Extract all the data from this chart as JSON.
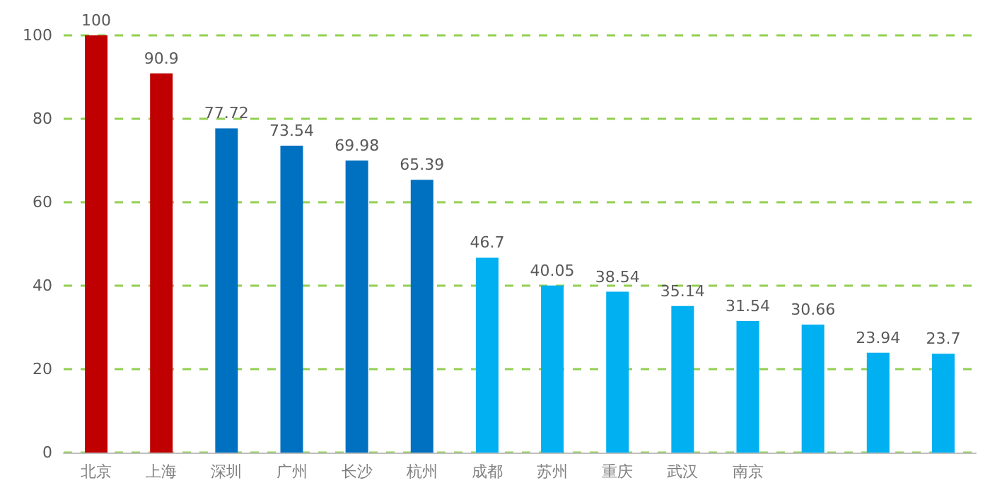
{
  "chart_data": {
    "type": "bar",
    "categories": [
      "北京",
      "上海",
      "深圳",
      "广州",
      "长沙",
      "杭州",
      "成都",
      "苏州",
      "重庆",
      "武汉",
      "南京",
      null,
      null,
      null
    ],
    "values": [
      100,
      90.9,
      77.72,
      73.54,
      69.98,
      65.39,
      46.7,
      40.05,
      38.54,
      35.14,
      31.54,
      30.66,
      23.94,
      23.7
    ],
    "colors": [
      "#c00000",
      "#c00000",
      "#0070c0",
      "#0070c0",
      "#0070c0",
      "#0070c0",
      "#00b0f0",
      "#00b0f0",
      "#00b0f0",
      "#00b0f0",
      "#00b0f0",
      "#00b0f0",
      "#00b0f0",
      "#00b0f0"
    ],
    "ylim": [
      0,
      100
    ],
    "yticks": [
      0,
      20,
      40,
      60,
      80,
      100
    ],
    "grid": "y",
    "data_labels": true
  }
}
